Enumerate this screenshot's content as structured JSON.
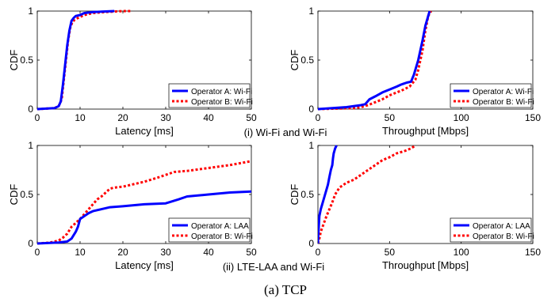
{
  "figure": {
    "caption": "(a) TCP",
    "row_captions": [
      "(i) Wi-Fi and Wi-Fi",
      "(ii) LTE-LAA and Wi-Fi"
    ]
  },
  "colors": {
    "series_a": "#0000ff",
    "series_b": "#ff0000",
    "axis": "#000000",
    "grid_bg": "#ffffff"
  },
  "chart_data": [
    {
      "type": "line",
      "xlabel": "Latency [ms]",
      "ylabel": "CDF",
      "xlim": [
        0,
        50
      ],
      "ylim": [
        0,
        1
      ],
      "xticks": [
        0,
        10,
        20,
        30,
        40,
        50
      ],
      "yticks": [
        0,
        0.5,
        1
      ],
      "grid": false,
      "legend_position": "bottom-right",
      "series": [
        {
          "name": "Operator A: Wi-Fi",
          "style": "solid",
          "x": [
            0,
            4,
            5,
            5.5,
            6,
            6.5,
            7,
            7.5,
            8,
            8.5,
            9,
            10,
            11,
            13,
            18
          ],
          "y": [
            0,
            0.01,
            0.03,
            0.08,
            0.25,
            0.45,
            0.65,
            0.8,
            0.9,
            0.93,
            0.95,
            0.96,
            0.98,
            0.99,
            1
          ]
        },
        {
          "name": "Operator B: Wi-Fi",
          "style": "dotted",
          "x": [
            0,
            4,
            5,
            5.7,
            6.2,
            6.7,
            7.2,
            7.7,
            8.2,
            8.7,
            9.5,
            11,
            13,
            16,
            20,
            22
          ],
          "y": [
            0,
            0.01,
            0.03,
            0.1,
            0.3,
            0.5,
            0.7,
            0.83,
            0.89,
            0.91,
            0.93,
            0.96,
            0.98,
            0.99,
            1,
            1
          ]
        }
      ]
    },
    {
      "type": "line",
      "xlabel": "Throughput [Mbps]",
      "ylabel": "CDF",
      "xlim": [
        0,
        150
      ],
      "ylim": [
        0,
        1
      ],
      "xticks": [
        0,
        50,
        100,
        150
      ],
      "yticks": [
        0,
        0.5,
        1
      ],
      "grid": false,
      "legend_position": "bottom-right",
      "series": [
        {
          "name": "Operator A: Wi-Fi",
          "style": "solid",
          "x": [
            0,
            20,
            30,
            33,
            36,
            40,
            45,
            50,
            55,
            58,
            62,
            65,
            67,
            70,
            73,
            75,
            77,
            78
          ],
          "y": [
            0,
            0.02,
            0.04,
            0.05,
            0.1,
            0.13,
            0.17,
            0.2,
            0.23,
            0.25,
            0.27,
            0.28,
            0.35,
            0.5,
            0.7,
            0.85,
            0.95,
            1
          ]
        },
        {
          "name": "Operator B: Wi-Fi",
          "style": "dotted",
          "x": [
            0,
            25,
            30,
            35,
            40,
            45,
            50,
            55,
            60,
            64,
            68,
            70,
            73,
            75,
            77,
            79
          ],
          "y": [
            0,
            0.01,
            0.02,
            0.04,
            0.07,
            0.1,
            0.14,
            0.17,
            0.2,
            0.23,
            0.3,
            0.4,
            0.6,
            0.8,
            0.95,
            1
          ]
        }
      ]
    },
    {
      "type": "line",
      "xlabel": "Latency [ms]",
      "ylabel": "CDF",
      "xlim": [
        0,
        50
      ],
      "ylim": [
        0,
        1
      ],
      "xticks": [
        0,
        10,
        20,
        30,
        40,
        50
      ],
      "yticks": [
        0,
        0.5,
        1
      ],
      "grid": false,
      "legend_position": "bottom-right",
      "series": [
        {
          "name": "Operator A: LAA",
          "style": "solid",
          "x": [
            0,
            5,
            7,
            8,
            9,
            9.5,
            10,
            11,
            12,
            13,
            15,
            17,
            20,
            25,
            30,
            33,
            35,
            40,
            45,
            50
          ],
          "y": [
            0,
            0.01,
            0.02,
            0.05,
            0.12,
            0.17,
            0.25,
            0.28,
            0.31,
            0.33,
            0.35,
            0.37,
            0.38,
            0.4,
            0.41,
            0.45,
            0.48,
            0.5,
            0.52,
            0.53
          ]
        },
        {
          "name": "Operator B: Wi-Fi",
          "style": "dotted",
          "x": [
            0,
            3,
            5,
            6,
            7,
            8,
            9,
            10,
            11,
            12,
            13,
            14,
            15,
            16,
            17,
            18,
            20,
            22,
            25,
            28,
            30,
            32,
            35,
            40,
            45,
            50
          ],
          "y": [
            0,
            0.01,
            0.03,
            0.06,
            0.1,
            0.17,
            0.21,
            0.25,
            0.3,
            0.35,
            0.4,
            0.45,
            0.48,
            0.52,
            0.56,
            0.57,
            0.58,
            0.6,
            0.63,
            0.67,
            0.7,
            0.73,
            0.74,
            0.77,
            0.8,
            0.84
          ]
        }
      ]
    },
    {
      "type": "line",
      "xlabel": "Throughput [Mbps]",
      "ylabel": "CDF",
      "xlim": [
        0,
        150
      ],
      "ylim": [
        0,
        1
      ],
      "xticks": [
        0,
        50,
        100,
        150
      ],
      "yticks": [
        0,
        0.5,
        1
      ],
      "grid": false,
      "legend_position": "bottom-right",
      "series": [
        {
          "name": "Operator A: LAA",
          "style": "solid",
          "x": [
            0,
            0.5,
            1,
            2,
            3,
            5,
            6,
            7,
            8,
            9,
            10,
            10.5,
            11,
            12,
            13
          ],
          "y": [
            0,
            0.15,
            0.28,
            0.35,
            0.4,
            0.5,
            0.55,
            0.6,
            0.68,
            0.75,
            0.8,
            0.87,
            0.92,
            0.97,
            1
          ]
        },
        {
          "name": "Operator B: Wi-Fi",
          "style": "dotted",
          "x": [
            0,
            1,
            2,
            4,
            6,
            8,
            10,
            12,
            15,
            20,
            25,
            30,
            35,
            40,
            45,
            50,
            55,
            60,
            65,
            68
          ],
          "y": [
            0,
            0.05,
            0.12,
            0.2,
            0.28,
            0.35,
            0.42,
            0.5,
            0.57,
            0.62,
            0.65,
            0.7,
            0.75,
            0.8,
            0.85,
            0.88,
            0.92,
            0.94,
            0.97,
            1
          ]
        }
      ]
    }
  ]
}
